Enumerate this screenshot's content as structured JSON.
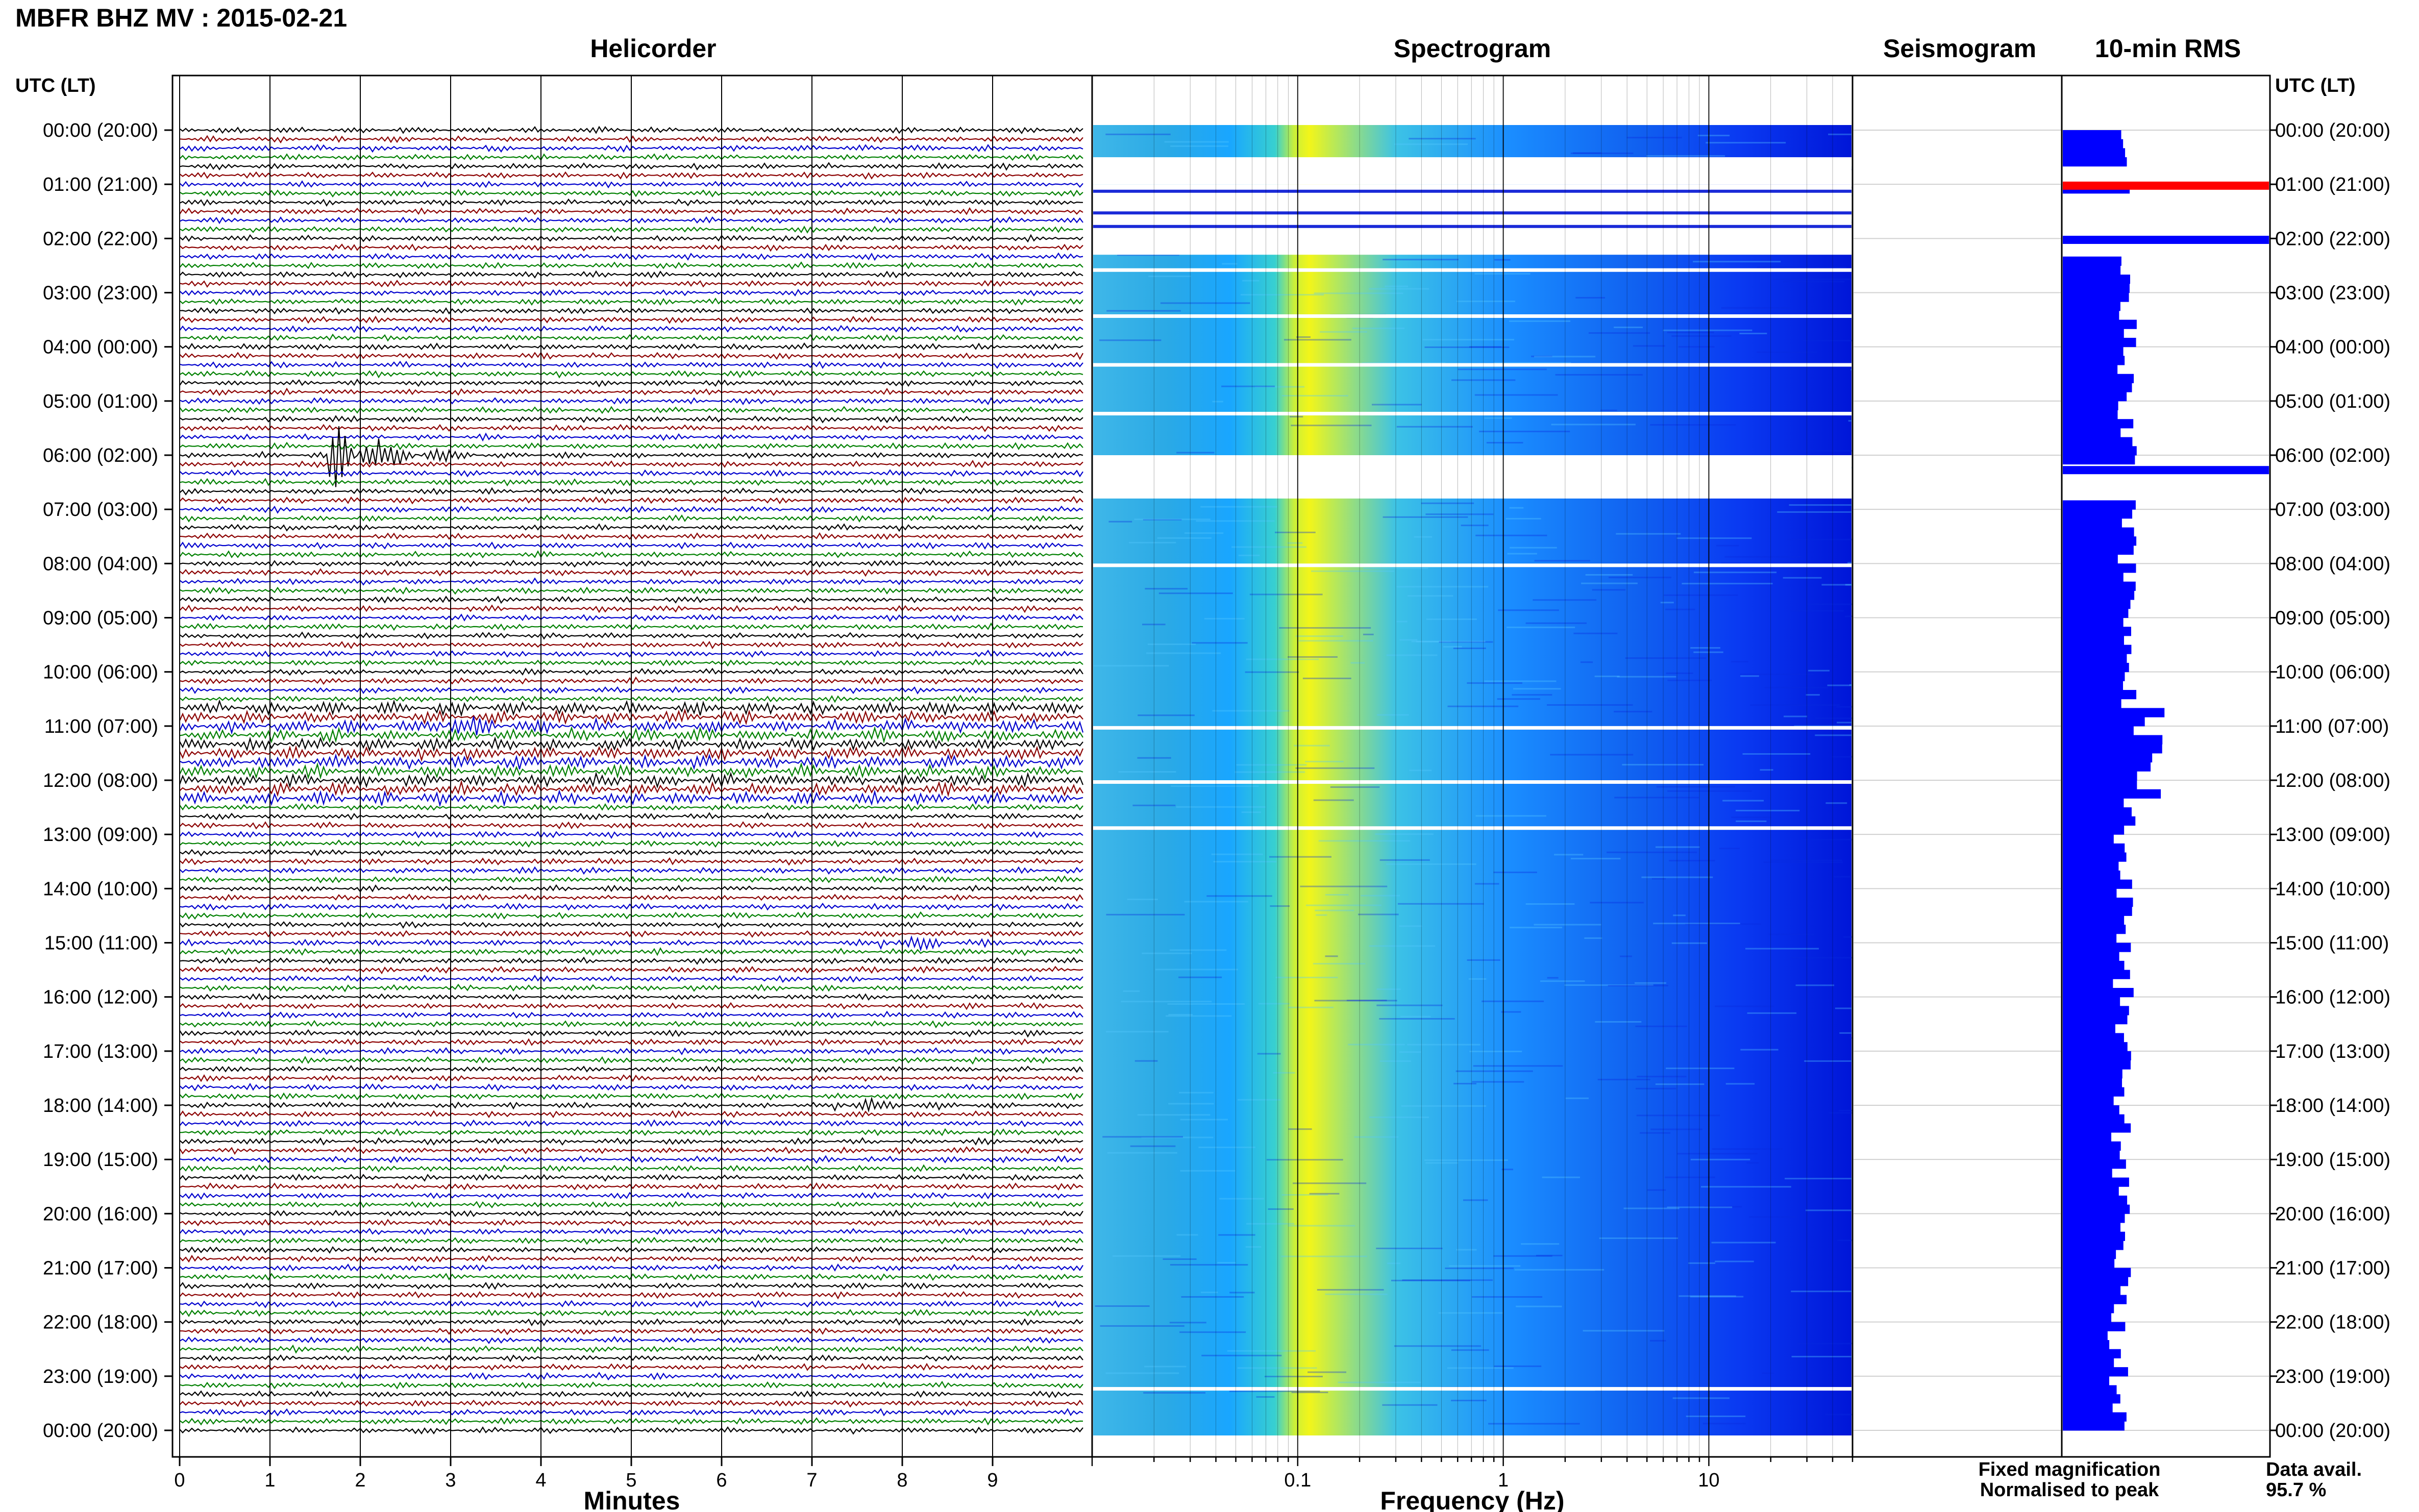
{
  "header": {
    "title": "MBFR BHZ MV : 2015-02-21",
    "utc_label_left": "UTC (LT)",
    "utc_label_right": "UTC (LT)"
  },
  "panels": {
    "helicorder": "Helicorder",
    "spectrogram": "Spectrogram",
    "seismogram": "Seismogram",
    "rms": "10-min RMS"
  },
  "time_labels": [
    "00:00 (20:00)",
    "01:00 (21:00)",
    "02:00 (22:00)",
    "03:00 (23:00)",
    "04:00 (00:00)",
    "05:00 (01:00)",
    "06:00 (02:00)",
    "07:00 (03:00)",
    "08:00 (04:00)",
    "09:00 (05:00)",
    "10:00 (06:00)",
    "11:00 (07:00)",
    "12:00 (08:00)",
    "13:00 (09:00)",
    "14:00 (10:00)",
    "15:00 (11:00)",
    "16:00 (12:00)",
    "17:00 (13:00)",
    "18:00 (14:00)",
    "19:00 (15:00)",
    "20:00 (16:00)",
    "21:00 (17:00)",
    "22:00 (18:00)",
    "23:00 (19:00)",
    "00:00 (20:00)"
  ],
  "legend": {
    "fixed": "Fixed magnification",
    "fixed_color": "#0000ff",
    "normalised": "Normalised to peak",
    "normalised_color": "#ff0000",
    "data_avail_label": "Data avail.",
    "data_avail_value": "95.7 %"
  },
  "chart_data": [
    {
      "type": "line",
      "panel": "helicorder",
      "xlabel": "Minutes",
      "ylabel": "",
      "xlim": [
        0,
        10
      ],
      "x_ticks": [
        0,
        1,
        2,
        3,
        4,
        5,
        6,
        7,
        8,
        9
      ],
      "ylim_hours": [
        0,
        24
      ],
      "lines_per_hour": 6,
      "trace_colors": [
        "#000000",
        "#8b0000",
        "#0000cd",
        "#008000"
      ],
      "events": [
        {
          "hour": 6.0,
          "minute": 1.8,
          "note": "large event"
        },
        {
          "hour": 11.0,
          "minute": 3.0
        },
        {
          "hour": 15.0,
          "minute": 7.9
        },
        {
          "hour": 18.0,
          "minute": 7.4
        }
      ]
    },
    {
      "type": "heatmap",
      "panel": "spectrogram",
      "xlabel": "Frequency (Hz)",
      "x_scale": "log",
      "xlim": [
        0.01,
        50
      ],
      "x_ticks": [
        0.1,
        1,
        10
      ],
      "x_tick_labels": [
        "0.1",
        "1",
        "10"
      ],
      "ylim_hours": [
        0,
        24
      ],
      "colormap": [
        "#0000ff",
        "#00aaff",
        "#00ffaa",
        "#ffff00"
      ],
      "peak_band_hz": [
        0.15,
        0.3
      ],
      "gaps_hours": [
        [
          0.5,
          1.0
        ],
        [
          1.0,
          2.3
        ],
        [
          6.0,
          6.8
        ]
      ]
    },
    {
      "type": "line",
      "panel": "seismogram",
      "ylim_hours": [
        0,
        24
      ],
      "trace_color": "#0000ff"
    },
    {
      "type": "bar",
      "panel": "rms",
      "orientation": "horizontal",
      "ylim_hours": [
        0,
        24
      ],
      "bin_minutes": 10,
      "bar_color": "#0000ff",
      "spike_hours": [
        {
          "hour": 0.95,
          "color": "#ff0000"
        },
        {
          "hour": 1.95,
          "color": "#0000ff"
        },
        {
          "hour": 6.2,
          "color": "#0000ff"
        }
      ]
    }
  ]
}
